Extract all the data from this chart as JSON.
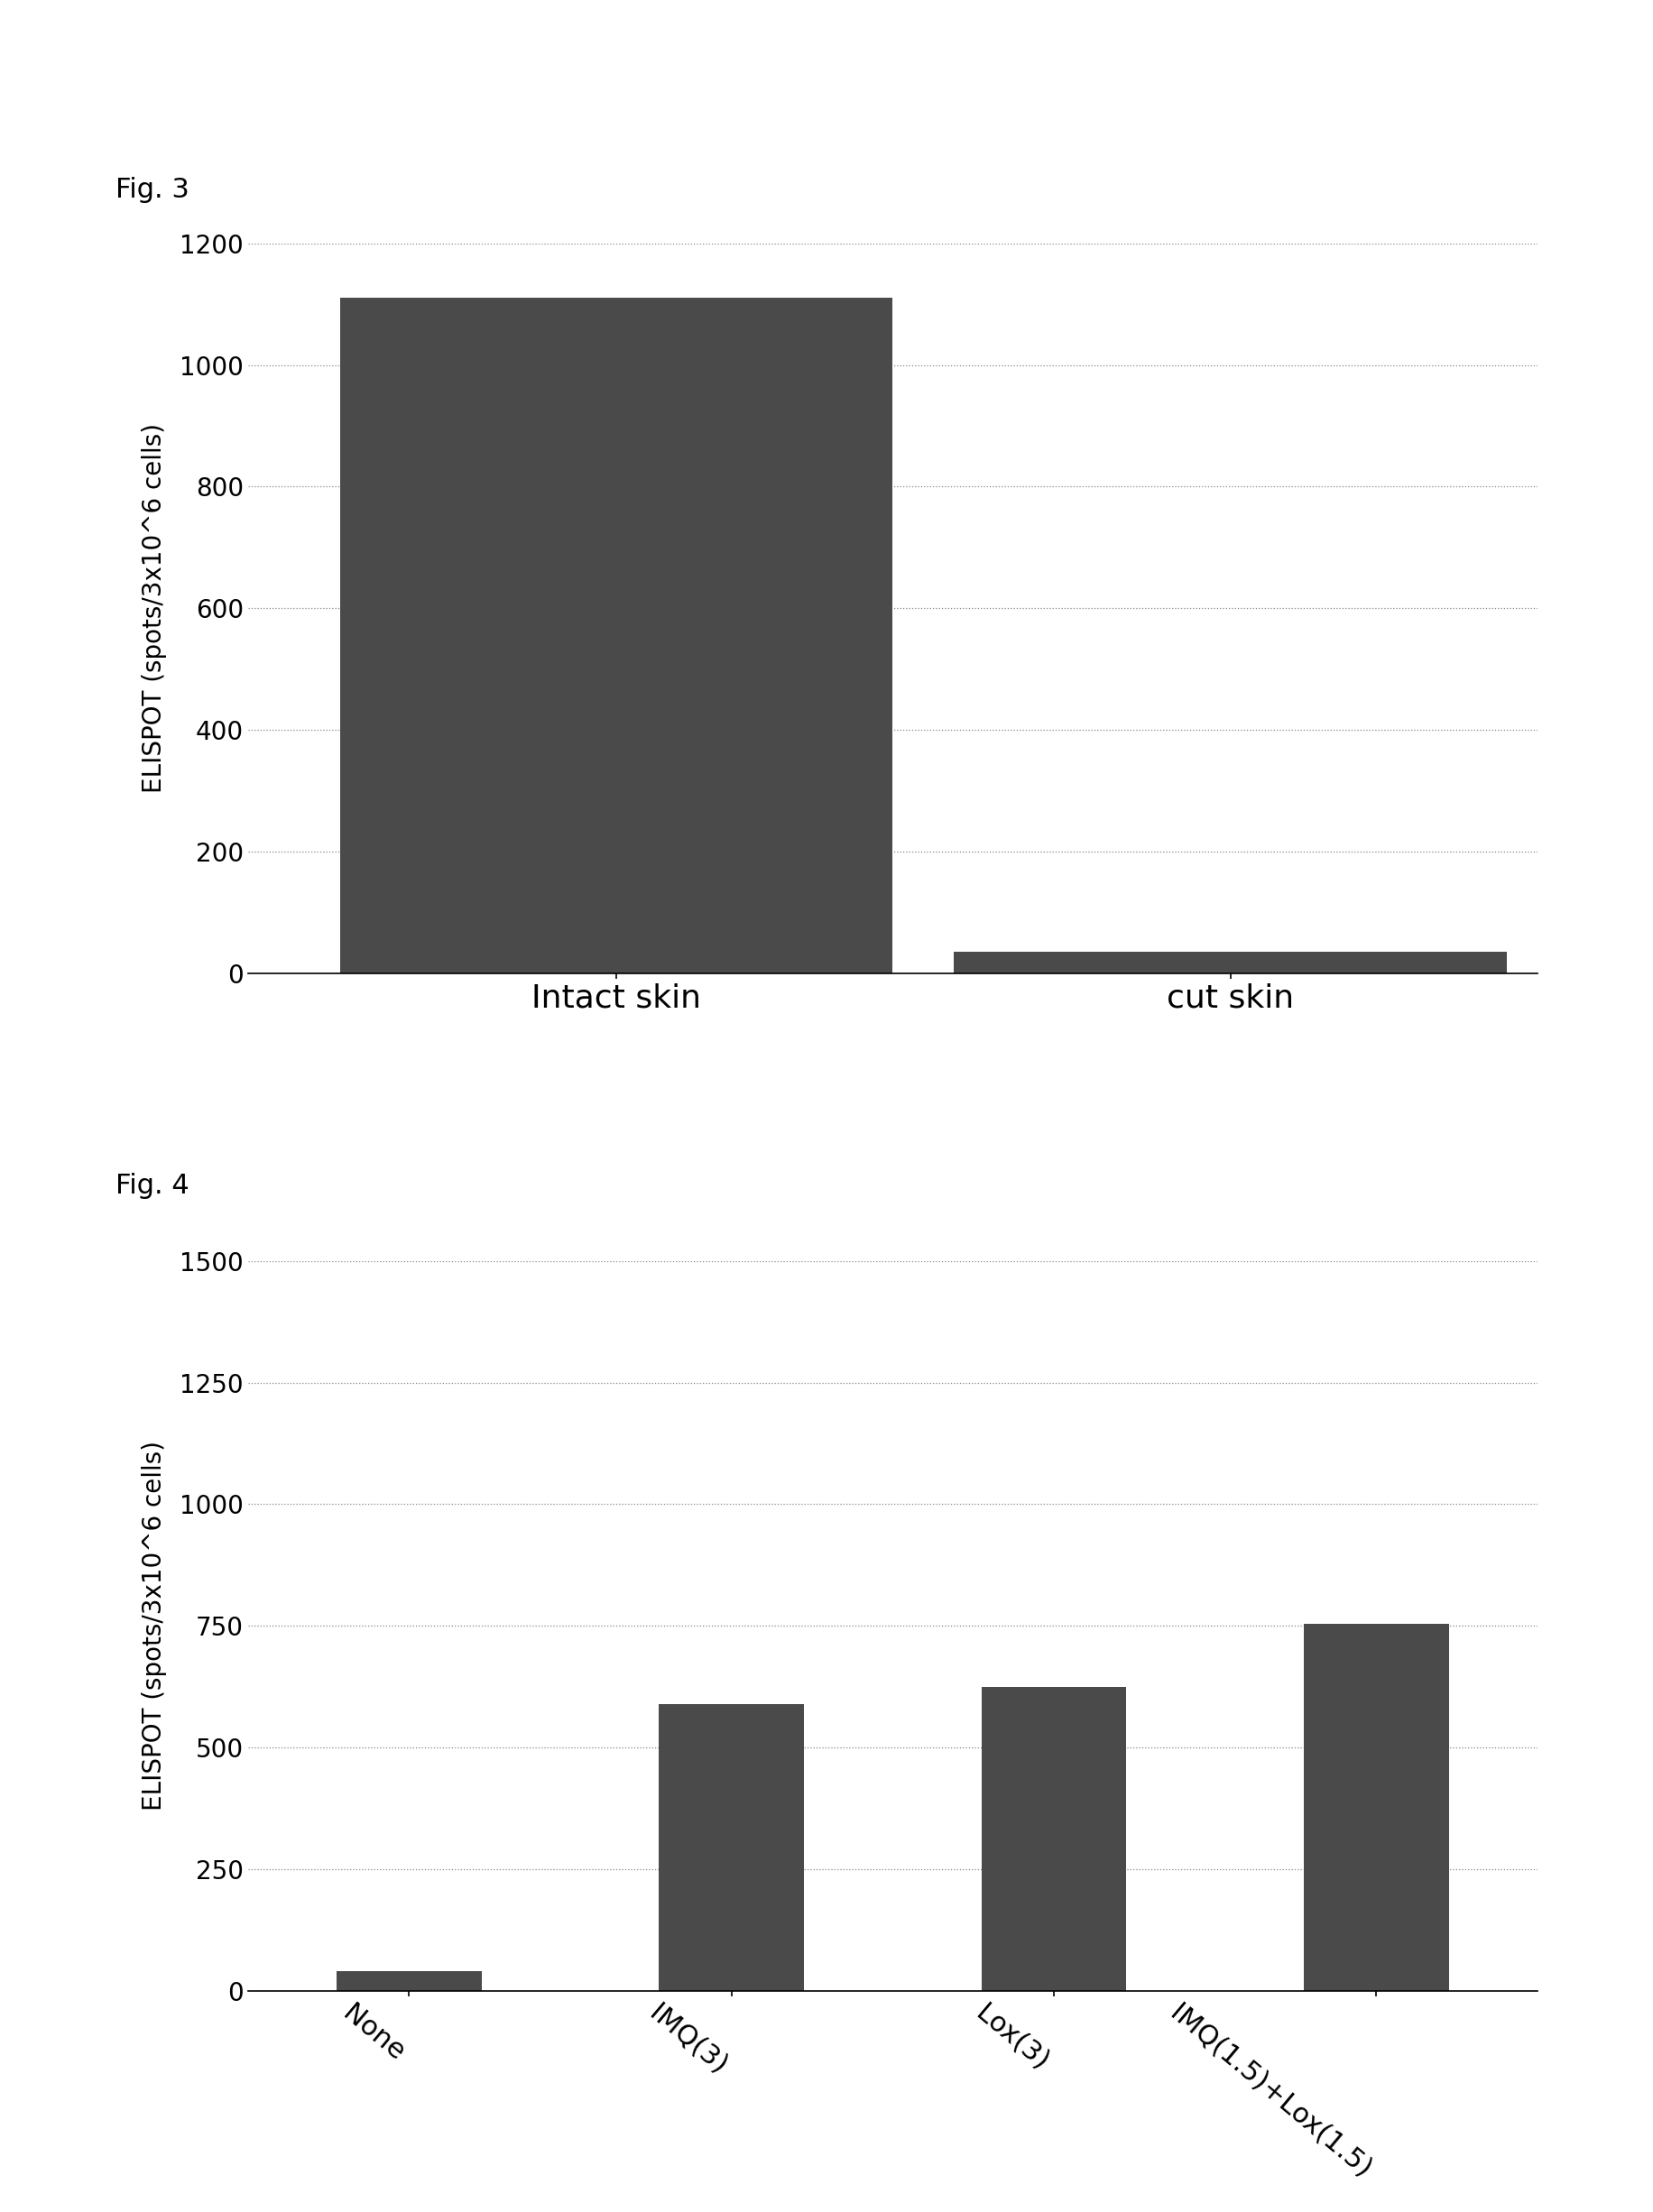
{
  "fig3": {
    "title": "Fig. 3",
    "categories": [
      "Intact skin",
      "cut skin"
    ],
    "values": [
      1110,
      35
    ],
    "bar_color": "#4a4a4a",
    "ylabel": "ELISPOT (spots/3x10^6 cells)",
    "ylim": [
      0,
      1200
    ],
    "yticks": [
      0,
      200,
      400,
      600,
      800,
      1000,
      1200
    ],
    "bar_width": 0.45,
    "x_positions": [
      0.25,
      0.75
    ]
  },
  "fig4": {
    "title": "Fig. 4",
    "categories": [
      "None",
      "IMQ(3)",
      "Lox(3)",
      "IMQ(1.5)+Lox(1.5)"
    ],
    "values": [
      40,
      590,
      625,
      755
    ],
    "bar_color": "#4a4a4a",
    "ylabel": "ELISPOT (spots/3x10^6 cells)",
    "ylim": [
      0,
      1500
    ],
    "yticks": [
      0,
      250,
      500,
      750,
      1000,
      1250,
      1500
    ],
    "bar_width": 0.45,
    "x_positions": [
      0,
      1,
      2,
      3
    ]
  },
  "background_color": "#ffffff",
  "title_fontsize": 22,
  "ylabel_fontsize": 20,
  "ytick_fontsize": 20,
  "xtick_fontsize_fig3": 26,
  "xtick_fontsize_fig4": 22
}
